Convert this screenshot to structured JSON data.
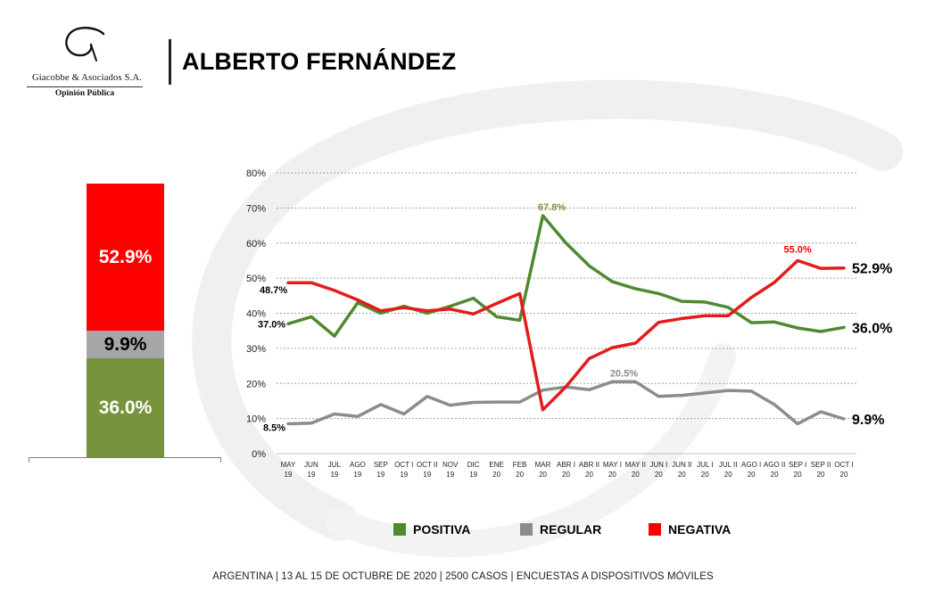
{
  "header": {
    "title": "ALBERTO FERNÁNDEZ",
    "logo_company": "Giacobbe & Asociados S.A.",
    "logo_subtitle": "Opinión Pública"
  },
  "summary_bar": {
    "negativa": "52.9%",
    "regular": "9.9%",
    "positiva": "36.0%"
  },
  "legend": {
    "positiva": "POSITIVA",
    "regular": "REGULAR",
    "negativa": "NEGATIVA"
  },
  "footer": "ARGENTINA | 13 AL 15 DE OCTUBRE DE 2020 | 2500 CASOS | ENCUESTAS A DISPOSITIVOS MÓVILES",
  "colors": {
    "positiva": "#77933c",
    "positiva_line": "#4f8a2f",
    "regular": "#a6a6a6",
    "regular_line": "#8c8c8c",
    "negativa": "#ff0000",
    "negativa_line": "#e51b1b"
  },
  "chart_data": {
    "type": "line",
    "title": "ALBERTO FERNÁNDEZ",
    "ylim": [
      0,
      80
    ],
    "yticks": [
      "0%",
      "10%",
      "20%",
      "30%",
      "40%",
      "50%",
      "60%",
      "70%",
      "80%"
    ],
    "grid": true,
    "categories": [
      [
        "MAY",
        "19"
      ],
      [
        "JUN",
        "19"
      ],
      [
        "JUL",
        "19"
      ],
      [
        "AGO",
        "19"
      ],
      [
        "SEP",
        "19"
      ],
      [
        "OCT I",
        "19"
      ],
      [
        "OCT II",
        "19"
      ],
      [
        "NOV",
        "19"
      ],
      [
        "DIC",
        "19"
      ],
      [
        "ENE",
        "20"
      ],
      [
        "FEB",
        "20"
      ],
      [
        "MAR",
        "20"
      ],
      [
        "ABR I",
        "20"
      ],
      [
        "ABR II",
        "20"
      ],
      [
        "MAY I",
        "20"
      ],
      [
        "MAY II",
        "20"
      ],
      [
        "JUN I",
        "20"
      ],
      [
        "JUN II",
        "20"
      ],
      [
        "JUL I",
        "20"
      ],
      [
        "JUL II",
        "20"
      ],
      [
        "AGO I",
        "20"
      ],
      [
        "AGO II",
        "20"
      ],
      [
        "SEP I",
        "20"
      ],
      [
        "SEP II",
        "20"
      ],
      [
        "OCT I",
        "20"
      ]
    ],
    "series": [
      {
        "name": "POSITIVA",
        "values": [
          37.0,
          39,
          33.5,
          43,
          40,
          42,
          40,
          42,
          44.3,
          39,
          38,
          67.8,
          60,
          53.5,
          49,
          47,
          45.6,
          43.4,
          43.2,
          41.7,
          37.3,
          37.5,
          35.8,
          34.8,
          36.0
        ]
      },
      {
        "name": "REGULAR",
        "values": [
          8.5,
          8.7,
          11.3,
          10.6,
          14,
          11.3,
          16.3,
          13.8,
          14.6,
          14.7,
          14.7,
          18.1,
          19,
          18.2,
          20.5,
          20.5,
          16.3,
          16.6,
          17.3,
          18,
          17.8,
          14,
          8.5,
          11.9,
          9.9
        ]
      },
      {
        "name": "NEGATIVA",
        "values": [
          48.7,
          48.7,
          46.5,
          43.8,
          40.7,
          41.6,
          40.7,
          41.2,
          39.8,
          42.8,
          45.6,
          12.5,
          19.1,
          27.1,
          30.2,
          31.5,
          37.4,
          38.5,
          39.3,
          39.3,
          44.5,
          48.8,
          55.0,
          52.8,
          52.9
        ]
      }
    ],
    "point_labels": {
      "positiva_start": "37.0%",
      "positiva_peak": "67.8%",
      "positiva_end": "36.0%",
      "regular_start": "8.5%",
      "regular_peak": "20.5%",
      "regular_end": "9.9%",
      "negativa_start": "48.7%",
      "negativa_peak": "55.0%",
      "negativa_end": "52.9%"
    }
  }
}
